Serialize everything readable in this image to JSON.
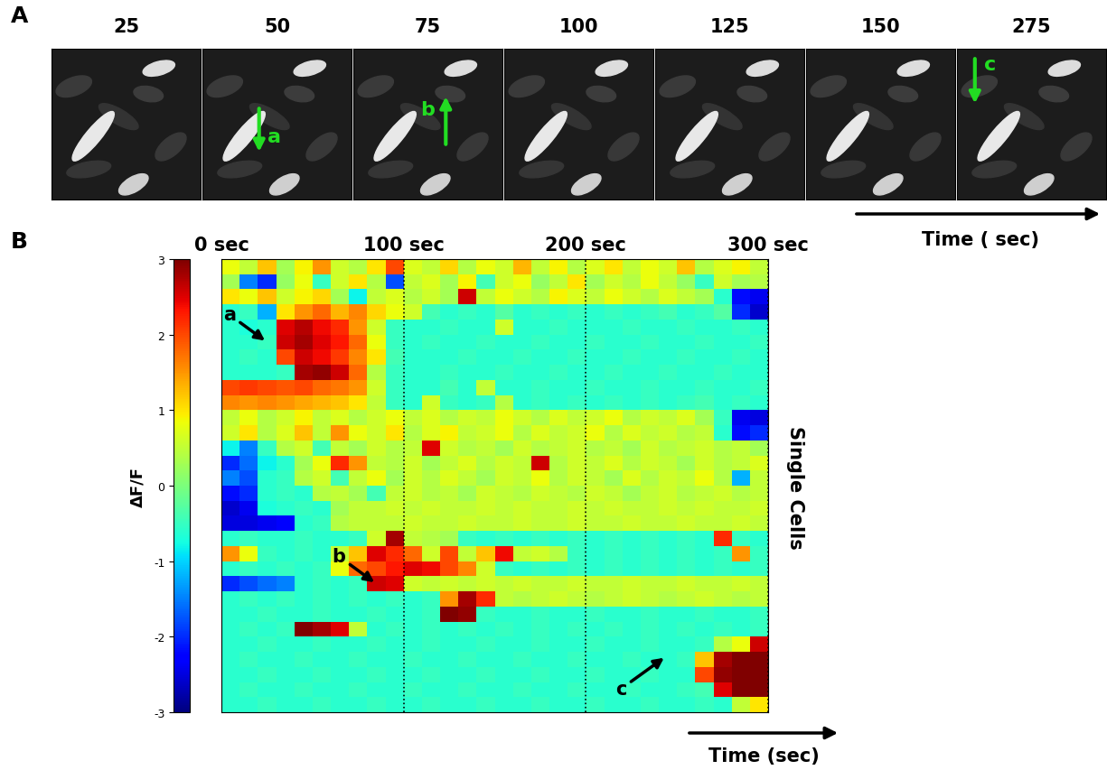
{
  "panel_a": {
    "label": "A",
    "frames": [
      25,
      50,
      75,
      100,
      125,
      150,
      275
    ],
    "annotations": [
      {
        "text": "a",
        "frame": 50
      },
      {
        "text": "b",
        "frame": 75
      },
      {
        "text": "c",
        "frame": 275
      }
    ],
    "color": "#22dd22",
    "time_label": "Time ( sec)"
  },
  "chart_data": {
    "type": "heatmap",
    "label": "B",
    "x_label": "Time (sec)",
    "y_label": "Single Cells",
    "xlim": [
      0,
      300
    ],
    "xticks": [
      {
        "value": 0,
        "label": "0 sec"
      },
      {
        "value": 100,
        "label": "100 sec"
      },
      {
        "value": 200,
        "label": "200 sec"
      },
      {
        "value": 300,
        "label": "300 sec"
      }
    ],
    "grid": true,
    "tick_labels": "x",
    "color": "jet",
    "colorbar_label": "ΔF/F",
    "colorbar_range": [
      -3,
      3
    ],
    "colorbar_ticks": [
      -3,
      -2,
      -1,
      0,
      1,
      2,
      3
    ],
    "bins": [
      0,
      10,
      20,
      30,
      40,
      50,
      60,
      70,
      80,
      90,
      100,
      110,
      120,
      130,
      140,
      150,
      160,
      170,
      180,
      190,
      200,
      210,
      220,
      230,
      240,
      250,
      260,
      270,
      280,
      290,
      300
    ],
    "annotations": [
      {
        "text": "a",
        "x": 25,
        "row": 5.5
      },
      {
        "text": "b",
        "x": 85,
        "row": 21.5
      },
      {
        "text": "c",
        "x": 244,
        "row": 26.3
      }
    ],
    "cells": [
      [
        0.8,
        0.5,
        1.2,
        0.3,
        0.9,
        1.5,
        0.6,
        0.4,
        1.0,
        2.0,
        0.7,
        0.5,
        1.1,
        0.4,
        0.8,
        0.6,
        1.3,
        0.5,
        0.9,
        0.4,
        0.7,
        1.0,
        0.5,
        0.8,
        0.6,
        1.2,
        0.4,
        0.7,
        0.9,
        0.5
      ],
      [
        0.3,
        -1.5,
        -2.0,
        0.2,
        0.8,
        -0.5,
        0.6,
        1.0,
        0.4,
        -1.8,
        0.5,
        0.7,
        0.3,
        0.9,
        -0.4,
        0.6,
        0.8,
        0.2,
        0.5,
        1.0,
        0.3,
        0.6,
        0.4,
        0.8,
        0.5,
        0.2,
        -0.5,
        0.6,
        0.3,
        0.4
      ],
      [
        1.0,
        0.8,
        1.2,
        0.6,
        0.9,
        1.1,
        0.3,
        -0.8,
        0.5,
        0.7,
        0.4,
        0.6,
        0.3,
        2.6,
        0.5,
        0.8,
        0.6,
        0.4,
        0.9,
        0.7,
        0.5,
        0.8,
        0.6,
        0.4,
        0.7,
        0.5,
        0.3,
        -0.6,
        -2.2,
        -2.4
      ],
      [
        -0.6,
        -0.5,
        -1.2,
        1.0,
        1.5,
        1.8,
        1.3,
        1.6,
        1.1,
        0.8,
        0.6,
        -0.4,
        -0.6,
        -0.5,
        -0.6,
        -0.3,
        -0.6,
        -0.5,
        -0.6,
        -0.5,
        -0.6,
        -0.5,
        -0.6,
        -0.5,
        -0.4,
        -0.6,
        -0.5,
        -0.3,
        -2.0,
        -2.6
      ],
      [
        -0.6,
        -0.7,
        -0.6,
        2.5,
        2.7,
        2.4,
        2.2,
        1.5,
        0.6,
        -0.5,
        -0.6,
        -0.6,
        -0.5,
        -0.6,
        -0.6,
        0.6,
        -0.6,
        -0.6,
        -0.5,
        -0.6,
        -0.6,
        -0.6,
        -0.5,
        -0.6,
        -0.6,
        -0.5,
        -0.6,
        -0.6,
        -0.5,
        -0.6
      ],
      [
        -0.6,
        -0.6,
        -0.5,
        2.6,
        2.8,
        2.5,
        2.3,
        1.8,
        0.8,
        -0.5,
        -0.6,
        -0.5,
        -0.6,
        -0.6,
        -0.5,
        -0.6,
        -0.6,
        -0.5,
        -0.6,
        -0.6,
        -0.5,
        -0.6,
        -0.6,
        -0.5,
        -0.6,
        -0.6,
        -0.5,
        -0.6,
        -0.6,
        -0.5
      ],
      [
        -0.6,
        -0.5,
        -0.6,
        2.0,
        2.6,
        2.4,
        2.1,
        1.6,
        1.0,
        -0.4,
        -0.6,
        -0.6,
        -0.6,
        -0.5,
        -0.6,
        -0.6,
        -0.5,
        -0.6,
        -0.6,
        -0.5,
        -0.6,
        -0.6,
        -0.5,
        -0.6,
        -0.6,
        -0.5,
        -0.6,
        -0.6,
        -0.5,
        -0.6
      ],
      [
        -0.6,
        -0.6,
        -0.6,
        -0.5,
        2.8,
        2.9,
        2.6,
        1.8,
        0.4,
        -0.5,
        -0.6,
        -0.6,
        -0.5,
        -0.6,
        -0.6,
        -0.5,
        -0.6,
        -0.6,
        -0.5,
        -0.6,
        -0.6,
        -0.5,
        -0.6,
        -0.6,
        -0.5,
        -0.6,
        -0.6,
        -0.5,
        -0.6,
        -0.6
      ],
      [
        2.0,
        2.1,
        2.0,
        1.9,
        2.0,
        1.8,
        1.7,
        1.5,
        0.6,
        -0.5,
        -0.6,
        -0.6,
        -0.4,
        -0.6,
        0.5,
        -0.6,
        -0.6,
        -0.5,
        -0.6,
        -0.6,
        -0.5,
        -0.6,
        -0.6,
        -0.5,
        -0.6,
        -0.6,
        -0.5,
        -0.6,
        -0.6,
        -0.5
      ],
      [
        1.6,
        1.5,
        1.6,
        1.5,
        1.4,
        1.3,
        1.2,
        1.0,
        0.5,
        -0.5,
        -0.6,
        0.6,
        -0.5,
        -0.6,
        -0.5,
        0.4,
        -0.6,
        -0.5,
        -0.6,
        -0.5,
        -0.6,
        -0.5,
        -0.6,
        -0.5,
        -0.6,
        -0.5,
        -0.4,
        -0.6,
        -0.5,
        -0.6
      ],
      [
        0.5,
        0.8,
        0.4,
        0.6,
        0.9,
        0.5,
        0.7,
        0.4,
        0.6,
        0.8,
        0.5,
        0.7,
        0.4,
        0.6,
        0.5,
        0.8,
        0.6,
        0.4,
        0.7,
        0.5,
        0.6,
        0.8,
        0.4,
        0.6,
        0.5,
        0.7,
        0.3,
        -0.5,
        -2.4,
        -2.5
      ],
      [
        0.6,
        1.0,
        0.4,
        0.7,
        1.2,
        0.5,
        1.5,
        0.8,
        0.6,
        1.0,
        0.4,
        0.7,
        0.9,
        0.5,
        0.6,
        0.8,
        0.4,
        0.7,
        0.5,
        0.6,
        0.8,
        0.4,
        0.7,
        0.5,
        0.6,
        0.4,
        0.5,
        -0.6,
        -2.2,
        -2.0
      ],
      [
        -0.8,
        -1.5,
        -0.5,
        0.4,
        0.6,
        -0.4,
        0.5,
        0.3,
        0.6,
        0.4,
        0.5,
        2.5,
        0.6,
        0.4,
        0.5,
        0.3,
        0.6,
        0.4,
        0.5,
        0.6,
        0.4,
        0.5,
        0.3,
        0.6,
        0.4,
        0.5,
        0.6,
        0.4,
        0.5,
        0.3
      ],
      [
        -2.0,
        -1.6,
        -0.8,
        -0.6,
        0.3,
        0.8,
        2.2,
        1.5,
        0.5,
        0.4,
        0.6,
        0.3,
        0.5,
        0.7,
        0.4,
        0.6,
        0.5,
        2.6,
        0.4,
        0.6,
        0.5,
        0.7,
        0.4,
        0.6,
        0.5,
        0.3,
        0.6,
        0.4,
        0.5,
        0.7
      ],
      [
        -1.5,
        -1.8,
        -0.6,
        -0.5,
        0.4,
        0.6,
        -0.4,
        0.5,
        0.8,
        0.3,
        0.6,
        0.4,
        0.7,
        0.5,
        0.3,
        0.6,
        0.5,
        0.8,
        0.4,
        0.6,
        0.5,
        0.3,
        0.7,
        0.4,
        0.6,
        0.5,
        0.8,
        0.4,
        -1.2,
        0.5
      ],
      [
        -2.2,
        -2.0,
        -0.6,
        -0.5,
        -0.6,
        0.4,
        0.5,
        0.3,
        -0.4,
        0.5,
        0.6,
        0.4,
        0.5,
        0.3,
        0.6,
        0.5,
        0.4,
        0.6,
        0.5,
        0.4,
        0.6,
        0.5,
        0.3,
        0.5,
        0.6,
        0.4,
        0.5,
        0.6,
        0.4,
        0.5
      ],
      [
        -2.6,
        -2.4,
        -0.7,
        -0.6,
        -0.5,
        -0.6,
        0.3,
        0.5,
        0.5,
        0.6,
        0.5,
        0.6,
        0.5,
        0.5,
        0.6,
        0.5,
        0.6,
        0.5,
        0.5,
        0.6,
        0.5,
        0.6,
        0.5,
        0.5,
        0.6,
        0.5,
        0.6,
        0.5,
        0.5,
        0.6
      ],
      [
        -2.5,
        -2.5,
        -2.4,
        -2.3,
        -0.6,
        -0.5,
        0.4,
        0.5,
        0.5,
        0.5,
        0.6,
        0.5,
        0.5,
        0.6,
        0.5,
        0.5,
        0.6,
        0.5,
        0.5,
        0.6,
        0.5,
        0.5,
        0.6,
        0.5,
        0.5,
        0.6,
        0.5,
        0.5,
        0.6,
        0.5
      ],
      [
        -0.6,
        -0.5,
        -0.6,
        -0.6,
        -0.5,
        -0.6,
        -0.6,
        -0.5,
        0.6,
        2.8,
        0.5,
        0.4,
        0.3,
        -0.5,
        -0.6,
        -0.5,
        -0.6,
        -0.5,
        -0.6,
        -0.5,
        -0.6,
        -0.5,
        -0.6,
        -0.5,
        -0.6,
        -0.5,
        -0.6,
        2.2,
        -0.5,
        -0.6
      ],
      [
        1.5,
        0.8,
        -0.5,
        -0.6,
        -0.5,
        -0.6,
        0.5,
        1.2,
        2.5,
        2.2,
        1.8,
        0.6,
        2.0,
        0.5,
        1.2,
        2.4,
        0.5,
        0.6,
        0.4,
        -0.5,
        -0.6,
        -0.5,
        -0.6,
        -0.5,
        -0.6,
        -0.5,
        -0.6,
        -0.5,
        1.5,
        -0.5
      ],
      [
        -0.6,
        -0.5,
        -0.6,
        -0.5,
        -0.6,
        -0.5,
        0.8,
        1.8,
        2.0,
        2.3,
        2.5,
        2.4,
        2.0,
        1.6,
        0.6,
        -0.5,
        -0.6,
        -0.5,
        -0.6,
        -0.5,
        -0.6,
        -0.5,
        -0.6,
        -0.5,
        -0.6,
        -0.5,
        -0.6,
        -0.5,
        -0.6,
        -0.5
      ],
      [
        -2.0,
        -1.8,
        -1.6,
        -1.5,
        -0.6,
        -0.5,
        -0.6,
        -0.5,
        2.6,
        2.5,
        0.6,
        0.5,
        0.6,
        0.5,
        0.6,
        0.5,
        0.6,
        0.5,
        0.5,
        0.6,
        0.5,
        0.5,
        0.6,
        0.5,
        0.5,
        0.6,
        0.5,
        0.5,
        0.6,
        0.5
      ],
      [
        -0.6,
        -0.5,
        -0.6,
        -0.5,
        -0.6,
        -0.5,
        -0.6,
        -0.5,
        -0.6,
        -0.5,
        -0.6,
        -0.5,
        1.5,
        2.8,
        2.2,
        0.5,
        0.4,
        0.5,
        0.6,
        0.5,
        0.4,
        0.5,
        0.6,
        0.5,
        0.4,
        0.5,
        0.6,
        0.5,
        0.4,
        0.5
      ],
      [
        -0.6,
        -0.6,
        -0.5,
        -0.6,
        -0.6,
        -0.5,
        -0.6,
        -0.6,
        -0.5,
        -0.6,
        -0.6,
        -0.5,
        3.0,
        2.9,
        -0.5,
        -0.6,
        -0.6,
        -0.5,
        -0.6,
        -0.6,
        -0.5,
        -0.6,
        -0.6,
        -0.5,
        -0.6,
        -0.6,
        -0.5,
        -0.6,
        -0.6,
        -0.5
      ],
      [
        -0.6,
        -0.5,
        -0.6,
        -0.5,
        3.0,
        2.8,
        2.5,
        0.5,
        -0.6,
        -0.5,
        -0.6,
        -0.5,
        -0.6,
        -0.5,
        -0.6,
        -0.5,
        -0.6,
        -0.5,
        -0.6,
        -0.5,
        -0.6,
        -0.5,
        -0.6,
        -0.5,
        -0.6,
        -0.5,
        -0.6,
        -0.5,
        -0.6,
        -0.5
      ],
      [
        -0.6,
        -0.6,
        -0.5,
        -0.6,
        -0.6,
        -0.5,
        -0.6,
        -0.6,
        -0.5,
        -0.6,
        -0.6,
        -0.5,
        -0.6,
        -0.6,
        -0.5,
        -0.6,
        -0.6,
        -0.5,
        -0.6,
        -0.6,
        -0.5,
        -0.6,
        -0.6,
        -0.5,
        -0.6,
        -0.6,
        -0.5,
        0.4,
        0.8,
        2.6
      ],
      [
        -0.6,
        -0.5,
        -0.6,
        -0.6,
        -0.5,
        -0.6,
        -0.6,
        -0.5,
        -0.6,
        -0.6,
        -0.5,
        -0.6,
        -0.6,
        -0.5,
        -0.6,
        -0.6,
        -0.5,
        -0.6,
        -0.6,
        -0.5,
        -0.6,
        -0.6,
        -0.5,
        -0.6,
        -0.6,
        -0.5,
        1.2,
        2.8,
        3.0,
        3.0
      ],
      [
        -0.6,
        -0.6,
        -0.5,
        -0.6,
        -0.6,
        -0.5,
        -0.6,
        -0.6,
        -0.5,
        -0.6,
        -0.6,
        -0.5,
        -0.6,
        -0.6,
        -0.5,
        -0.6,
        -0.6,
        -0.5,
        -0.6,
        -0.6,
        -0.5,
        -0.6,
        -0.6,
        -0.5,
        -0.6,
        -0.6,
        2.0,
        2.9,
        3.0,
        3.0
      ],
      [
        -0.6,
        -0.5,
        -0.6,
        -0.6,
        -0.5,
        -0.6,
        -0.6,
        -0.5,
        -0.6,
        -0.6,
        -0.5,
        -0.6,
        -0.6,
        -0.5,
        -0.6,
        -0.6,
        -0.5,
        -0.6,
        -0.6,
        -0.5,
        -0.6,
        -0.6,
        -0.5,
        -0.6,
        -0.6,
        -0.5,
        -0.4,
        2.5,
        3.0,
        3.0
      ],
      [
        -0.6,
        -0.6,
        -0.5,
        -0.6,
        -0.6,
        -0.5,
        -0.6,
        -0.6,
        -0.5,
        -0.6,
        -0.6,
        -0.5,
        -0.6,
        -0.6,
        -0.5,
        -0.6,
        -0.6,
        -0.5,
        -0.6,
        -0.6,
        -0.5,
        -0.6,
        -0.6,
        -0.5,
        -0.6,
        -0.6,
        -0.5,
        -0.6,
        0.5,
        1.0
      ]
    ]
  }
}
